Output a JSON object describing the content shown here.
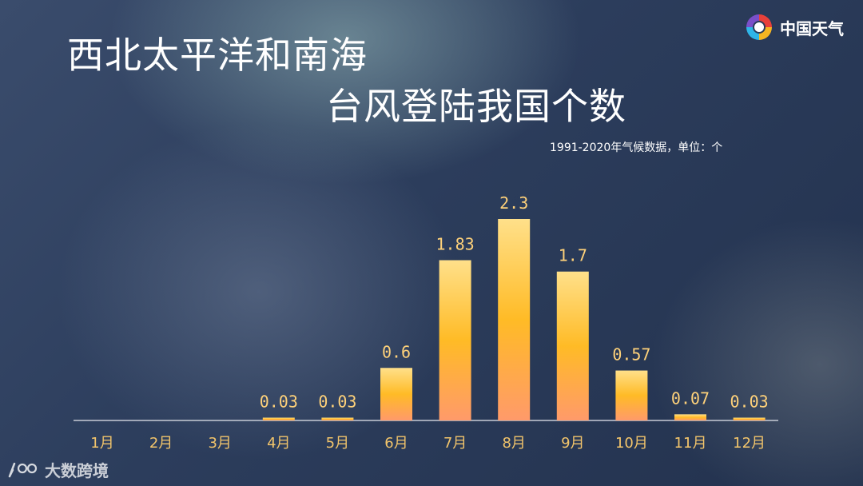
{
  "brand": {
    "name": "中国天气"
  },
  "watermark": {
    "text": "大数跨境"
  },
  "chart_data": {
    "type": "bar",
    "title_line1": "西北太平洋和南海",
    "title_line2": "台风登陆我国个数",
    "subtitle": "1991-2020年气候数据，单位：个",
    "categories": [
      "1月",
      "2月",
      "3月",
      "4月",
      "5月",
      "6月",
      "7月",
      "8月",
      "9月",
      "10月",
      "11月",
      "12月"
    ],
    "values": [
      0,
      0,
      0,
      0.03,
      0.03,
      0.6,
      1.83,
      2.3,
      1.7,
      0.57,
      0.07,
      0.03
    ],
    "labels": [
      "",
      "",
      "",
      "0.03",
      "0.03",
      "0.6",
      "1.83",
      "2.3",
      "1.7",
      "0.57",
      "0.07",
      "0.03"
    ],
    "ylim": [
      0,
      2.3
    ],
    "grid": false,
    "colors": {
      "bar_top": "#ffe08a",
      "bar_mid": "#ffbb26",
      "bar_bottom": "#ff9a6a",
      "label": "#ffd27a",
      "tick": "#f3c56b",
      "axis": "#c8ccd6"
    }
  }
}
